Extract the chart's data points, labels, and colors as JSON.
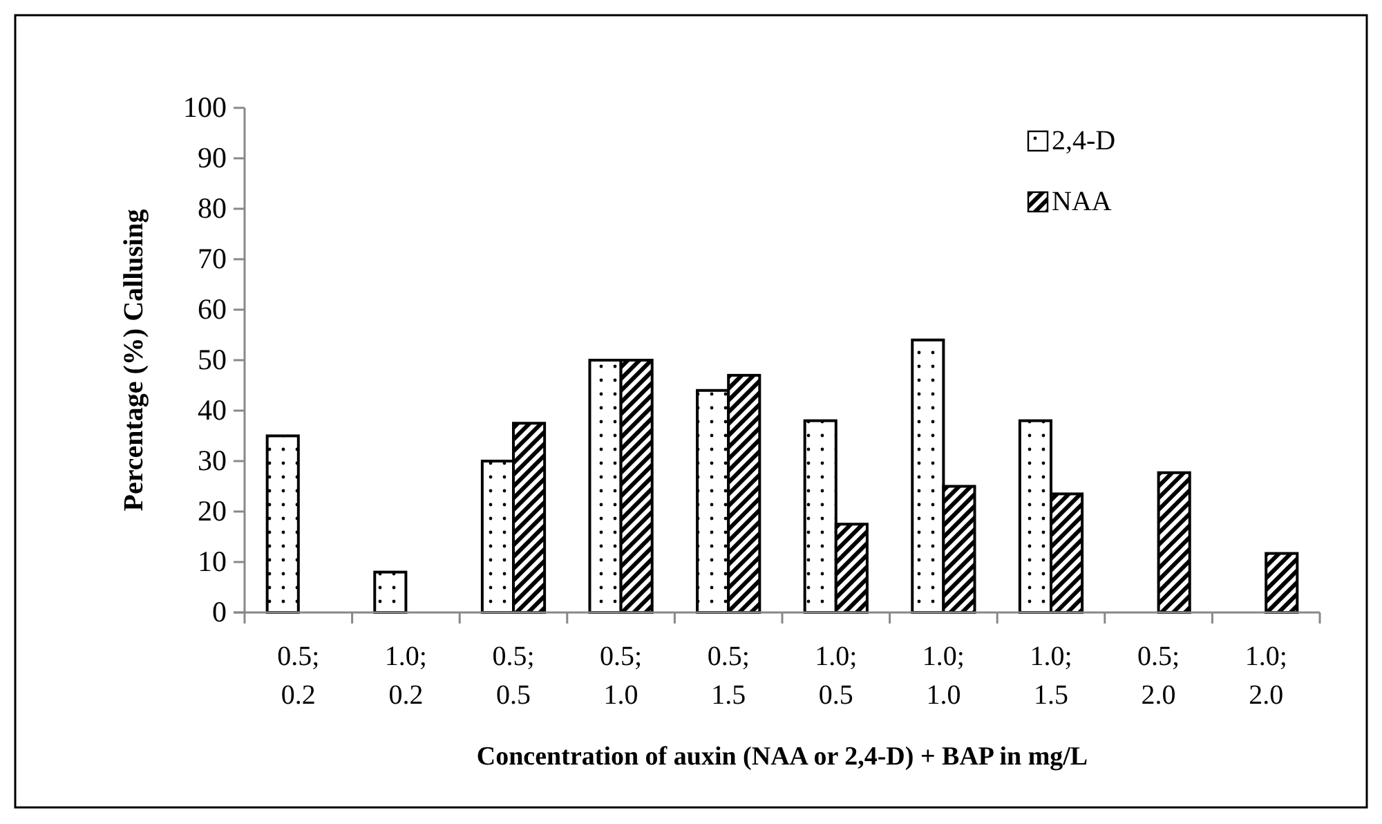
{
  "chart_data": {
    "type": "bar",
    "xlabel": "Concentration of auxin (NAA or 2,4-D) + BAP in mg/L",
    "ylabel": "Percentage (%) Callusing",
    "categories": [
      "0.5; 0.2",
      "1.0; 0.2",
      "0.5; 0.5",
      "0.5; 1.0",
      "0.5; 1.5",
      "1.0; 0.5",
      "1.0; 1.0",
      "1.0; 1.5",
      "0.5; 2.0",
      "1.0; 2.0"
    ],
    "series": [
      {
        "name": "2,4-D",
        "color": "#000000",
        "values": [
          35,
          8,
          30,
          50,
          44,
          38,
          54,
          38,
          null,
          null
        ]
      },
      {
        "name": "NAA",
        "color": "#000000",
        "values": [
          null,
          null,
          37.5,
          50,
          47,
          17.5,
          25,
          23.5,
          27.7,
          11.7
        ]
      }
    ],
    "ylim": [
      0,
      100
    ],
    "yticks": [
      0,
      10,
      20,
      30,
      40,
      50,
      60,
      70,
      80,
      90,
      100
    ],
    "grid": false,
    "legend": "top right"
  }
}
